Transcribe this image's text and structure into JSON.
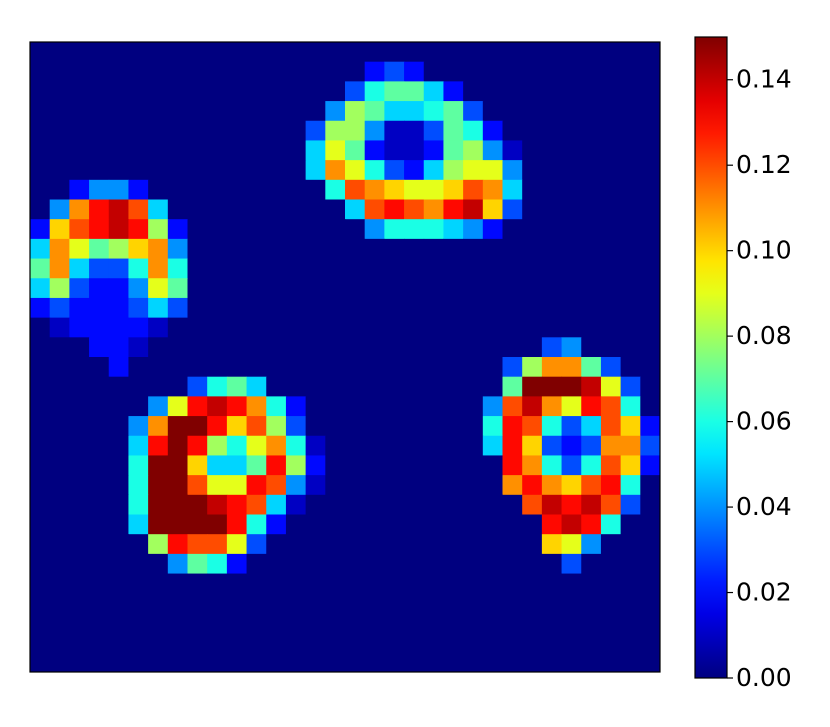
{
  "chart_data": {
    "type": "heatmap",
    "colormap": "jet",
    "colorbar_lim": [
      0,
      0.15
    ],
    "colorbar_ticks": [
      {
        "value": 0,
        "label": "0.00"
      },
      0.02,
      0.04,
      0.06,
      0.08,
      {
        "value": 0.1,
        "label": "0.10"
      },
      0.12,
      0.14
    ],
    "values": [
      [
        0,
        0,
        0,
        0,
        0,
        0,
        0,
        0,
        0,
        0,
        0,
        0,
        0,
        0,
        0,
        0,
        0,
        0,
        0,
        0,
        0,
        0,
        0,
        0,
        0,
        0,
        0,
        0,
        0,
        0,
        0,
        0
      ],
      [
        0,
        0,
        0,
        0,
        0,
        0,
        0,
        0,
        0,
        0,
        0,
        0,
        0,
        0,
        0,
        0,
        0,
        0.02,
        0.03,
        0.02,
        0,
        0,
        0,
        0,
        0,
        0,
        0,
        0,
        0,
        0,
        0,
        0
      ],
      [
        0,
        0,
        0,
        0,
        0,
        0,
        0,
        0,
        0,
        0,
        0,
        0,
        0,
        0,
        0,
        0,
        0.03,
        0.06,
        0.07,
        0.07,
        0.05,
        0.02,
        0,
        0,
        0,
        0,
        0,
        0,
        0,
        0,
        0,
        0
      ],
      [
        0,
        0,
        0,
        0,
        0,
        0,
        0,
        0,
        0,
        0,
        0,
        0,
        0,
        0,
        0,
        0.04,
        0.08,
        0.07,
        0.05,
        0.05,
        0.06,
        0.07,
        0.03,
        0,
        0,
        0,
        0,
        0,
        0,
        0,
        0,
        0
      ],
      [
        0,
        0,
        0,
        0,
        0,
        0,
        0,
        0,
        0,
        0,
        0,
        0,
        0,
        0,
        0.03,
        0.08,
        0.08,
        0.04,
        0.01,
        0.01,
        0.03,
        0.07,
        0.06,
        0.02,
        0,
        0,
        0,
        0,
        0,
        0,
        0,
        0
      ],
      [
        0,
        0,
        0,
        0,
        0,
        0,
        0,
        0,
        0,
        0,
        0,
        0,
        0,
        0,
        0.05,
        0.09,
        0.07,
        0.02,
        0.01,
        0.01,
        0.02,
        0.07,
        0.08,
        0.04,
        0.01,
        0,
        0,
        0,
        0,
        0,
        0,
        0
      ],
      [
        0,
        0,
        0,
        0,
        0,
        0,
        0,
        0,
        0,
        0,
        0,
        0,
        0,
        0,
        0.05,
        0.11,
        0.09,
        0.06,
        0.03,
        0.02,
        0.05,
        0.08,
        0.09,
        0.09,
        0.04,
        0,
        0,
        0,
        0,
        0,
        0,
        0
      ],
      [
        0,
        0,
        0.02,
        0.04,
        0.04,
        0.02,
        0,
        0,
        0,
        0,
        0,
        0,
        0,
        0,
        0,
        0.06,
        0.12,
        0.11,
        0.1,
        0.09,
        0.09,
        0.1,
        0.12,
        0.11,
        0.05,
        0,
        0,
        0,
        0,
        0,
        0,
        0
      ],
      [
        0,
        0.04,
        0.11,
        0.13,
        0.14,
        0.12,
        0.05,
        0,
        0,
        0,
        0,
        0,
        0,
        0,
        0,
        0,
        0.05,
        0.12,
        0.13,
        0.12,
        0.11,
        0.13,
        0.14,
        0.1,
        0.03,
        0,
        0,
        0,
        0,
        0,
        0,
        0
      ],
      [
        0.02,
        0.1,
        0.12,
        0.13,
        0.14,
        0.13,
        0.08,
        0.02,
        0,
        0,
        0,
        0,
        0,
        0,
        0,
        0,
        0,
        0.04,
        0.06,
        0.06,
        0.06,
        0.05,
        0.04,
        0.02,
        0,
        0,
        0,
        0,
        0,
        0,
        0,
        0
      ],
      [
        0.05,
        0.11,
        0.09,
        0.07,
        0.08,
        0.1,
        0.11,
        0.04,
        0,
        0,
        0,
        0,
        0,
        0,
        0,
        0,
        0,
        0,
        0,
        0,
        0,
        0,
        0,
        0,
        0,
        0,
        0,
        0,
        0,
        0,
        0,
        0
      ],
      [
        0.07,
        0.11,
        0.05,
        0.03,
        0.03,
        0.06,
        0.11,
        0.06,
        0,
        0,
        0,
        0,
        0,
        0,
        0,
        0,
        0,
        0,
        0,
        0,
        0,
        0,
        0,
        0,
        0,
        0,
        0,
        0,
        0,
        0,
        0,
        0
      ],
      [
        0.05,
        0.08,
        0.03,
        0.02,
        0.02,
        0.04,
        0.09,
        0.07,
        0,
        0,
        0,
        0,
        0,
        0,
        0,
        0,
        0,
        0,
        0,
        0,
        0,
        0,
        0,
        0,
        0,
        0,
        0,
        0,
        0,
        0,
        0,
        0
      ],
      [
        0.02,
        0.03,
        0.02,
        0.02,
        0.02,
        0.03,
        0.05,
        0.03,
        0,
        0,
        0,
        0,
        0,
        0,
        0,
        0,
        0,
        0,
        0,
        0,
        0,
        0,
        0,
        0,
        0,
        0,
        0,
        0,
        0,
        0,
        0,
        0
      ],
      [
        0,
        0.01,
        0.02,
        0.02,
        0.02,
        0.02,
        0.01,
        0,
        0,
        0,
        0,
        0,
        0,
        0,
        0,
        0,
        0,
        0,
        0,
        0,
        0,
        0,
        0,
        0,
        0,
        0,
        0,
        0,
        0,
        0,
        0,
        0
      ],
      [
        0,
        0,
        0,
        0.02,
        0.02,
        0.01,
        0,
        0,
        0,
        0,
        0,
        0,
        0,
        0,
        0,
        0,
        0,
        0,
        0,
        0,
        0,
        0,
        0,
        0,
        0,
        0,
        0.03,
        0.04,
        0,
        0,
        0,
        0
      ],
      [
        0,
        0,
        0,
        0,
        0.02,
        0,
        0,
        0,
        0,
        0,
        0,
        0,
        0,
        0,
        0,
        0,
        0,
        0,
        0,
        0,
        0,
        0,
        0,
        0,
        0.03,
        0.08,
        0.11,
        0.11,
        0.07,
        0.03,
        0,
        0
      ],
      [
        0,
        0,
        0,
        0,
        0,
        0,
        0,
        0,
        0.03,
        0.06,
        0.07,
        0.05,
        0,
        0,
        0,
        0,
        0,
        0,
        0,
        0,
        0,
        0,
        0,
        0,
        0.07,
        0.15,
        0.15,
        0.15,
        0.14,
        0.09,
        0.03,
        0
      ],
      [
        0,
        0,
        0,
        0,
        0,
        0,
        0.04,
        0.09,
        0.13,
        0.14,
        0.13,
        0.11,
        0.06,
        0.02,
        0,
        0,
        0,
        0,
        0,
        0,
        0,
        0,
        0,
        0.04,
        0.12,
        0.14,
        0.11,
        0.09,
        0.13,
        0.12,
        0.06,
        0
      ],
      [
        0,
        0,
        0,
        0,
        0,
        0.04,
        0.11,
        0.15,
        0.15,
        0.13,
        0.1,
        0.12,
        0.08,
        0.03,
        0,
        0,
        0,
        0,
        0,
        0,
        0,
        0,
        0,
        0.06,
        0.13,
        0.12,
        0.06,
        0.03,
        0.05,
        0.12,
        0.1,
        0.02
      ],
      [
        0,
        0,
        0,
        0,
        0,
        0.05,
        0.13,
        0.15,
        0.13,
        0.08,
        0.06,
        0.09,
        0.11,
        0.06,
        0.01,
        0,
        0,
        0,
        0,
        0,
        0,
        0,
        0,
        0.05,
        0.13,
        0.1,
        0.03,
        0.02,
        0.03,
        0.11,
        0.11,
        0.03
      ],
      [
        0,
        0,
        0,
        0,
        0,
        0.06,
        0.15,
        0.15,
        0.1,
        0.05,
        0.05,
        0.07,
        0.13,
        0.08,
        0.02,
        0,
        0,
        0,
        0,
        0,
        0,
        0,
        0,
        0,
        0.13,
        0.11,
        0.06,
        0.03,
        0.06,
        0.12,
        0.1,
        0.02
      ],
      [
        0,
        0,
        0,
        0,
        0,
        0.06,
        0.15,
        0.15,
        0.12,
        0.09,
        0.09,
        0.13,
        0.12,
        0.04,
        0.01,
        0,
        0,
        0,
        0,
        0,
        0,
        0,
        0,
        0,
        0.11,
        0.13,
        0.11,
        0.1,
        0.12,
        0.13,
        0.06,
        0
      ],
      [
        0,
        0,
        0,
        0,
        0,
        0.06,
        0.15,
        0.15,
        0.15,
        0.14,
        0.13,
        0.12,
        0.05,
        0.01,
        0,
        0,
        0,
        0,
        0,
        0,
        0,
        0,
        0,
        0,
        0,
        0.12,
        0.14,
        0.13,
        0.14,
        0.12,
        0.03,
        0
      ],
      [
        0,
        0,
        0,
        0,
        0,
        0.05,
        0.15,
        0.15,
        0.15,
        0.15,
        0.13,
        0.06,
        0.02,
        0,
        0,
        0,
        0,
        0,
        0,
        0,
        0,
        0,
        0,
        0,
        0,
        0,
        0.13,
        0.14,
        0.13,
        0.06,
        0,
        0
      ],
      [
        0,
        0,
        0,
        0,
        0,
        0,
        0.08,
        0.13,
        0.12,
        0.12,
        0.09,
        0.03,
        0,
        0,
        0,
        0,
        0,
        0,
        0,
        0,
        0,
        0,
        0,
        0,
        0,
        0,
        0.1,
        0.09,
        0.04,
        0,
        0,
        0
      ],
      [
        0,
        0,
        0,
        0,
        0,
        0,
        0,
        0.04,
        0.07,
        0.06,
        0.02,
        0,
        0,
        0,
        0,
        0,
        0,
        0,
        0,
        0,
        0,
        0,
        0,
        0,
        0,
        0,
        0,
        0.03,
        0,
        0,
        0,
        0
      ],
      [
        0,
        0,
        0,
        0,
        0,
        0,
        0,
        0,
        0,
        0,
        0,
        0,
        0,
        0,
        0,
        0,
        0,
        0,
        0,
        0,
        0,
        0,
        0,
        0,
        0,
        0,
        0,
        0,
        0,
        0,
        0,
        0
      ],
      [
        0,
        0,
        0,
        0,
        0,
        0,
        0,
        0,
        0,
        0,
        0,
        0,
        0,
        0,
        0,
        0,
        0,
        0,
        0,
        0,
        0,
        0,
        0,
        0,
        0,
        0,
        0,
        0,
        0,
        0,
        0,
        0
      ],
      [
        0,
        0,
        0,
        0,
        0,
        0,
        0,
        0,
        0,
        0,
        0,
        0,
        0,
        0,
        0,
        0,
        0,
        0,
        0,
        0,
        0,
        0,
        0,
        0,
        0,
        0,
        0,
        0,
        0,
        0,
        0,
        0
      ],
      [
        0,
        0,
        0,
        0,
        0,
        0,
        0,
        0,
        0,
        0,
        0,
        0,
        0,
        0,
        0,
        0,
        0,
        0,
        0,
        0,
        0,
        0,
        0,
        0,
        0,
        0,
        0,
        0,
        0,
        0,
        0,
        0
      ],
      [
        0,
        0,
        0,
        0,
        0,
        0,
        0,
        0,
        0,
        0,
        0,
        0,
        0,
        0,
        0,
        0,
        0,
        0,
        0,
        0,
        0,
        0,
        0,
        0,
        0,
        0,
        0,
        0,
        0,
        0,
        0,
        0
      ]
    ]
  }
}
